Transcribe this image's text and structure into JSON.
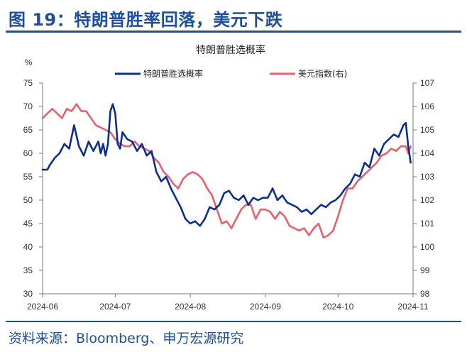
{
  "figure_title": "图 19：特朗普胜率回落，美元下跌",
  "source": "资料来源：Bloomberg、申万宏源研究",
  "chart_data": {
    "type": "line",
    "title": "特朗普胜选概率",
    "left_axis_unit": "%",
    "ylim_left": [
      30,
      75
    ],
    "ylim_right": [
      98,
      107
    ],
    "y_ticks_left": [
      "30",
      "35",
      "40",
      "45",
      "50",
      "55",
      "60",
      "65",
      "70",
      "75"
    ],
    "y_ticks_right": [
      "98",
      "99",
      "100",
      "101",
      "102",
      "103",
      "104",
      "105",
      "106",
      "107"
    ],
    "x_ticks": [
      "2024-06",
      "2024-07",
      "2024-08",
      "2024-09",
      "2024-10",
      "2024-11"
    ],
    "xlim": [
      "2024-06-01",
      "2024-11-01"
    ],
    "grid": false,
    "legend_position": "top",
    "series": [
      {
        "name": "特朗普胜选概率",
        "axis": "left",
        "color": "#0d2f8c",
        "points": [
          [
            "2024-06-01",
            56.5
          ],
          [
            "2024-06-03",
            56.5
          ],
          [
            "2024-06-04",
            57.5
          ],
          [
            "2024-06-06",
            59
          ],
          [
            "2024-06-08",
            60
          ],
          [
            "2024-06-10",
            62
          ],
          [
            "2024-06-12",
            61
          ],
          [
            "2024-06-14",
            66
          ],
          [
            "2024-06-16",
            61.5
          ],
          [
            "2024-06-18",
            59.5
          ],
          [
            "2024-06-20",
            62.5
          ],
          [
            "2024-06-22",
            60.5
          ],
          [
            "2024-06-24",
            62.5
          ],
          [
            "2024-06-25",
            60
          ],
          [
            "2024-06-26",
            62
          ],
          [
            "2024-06-27",
            59.5
          ],
          [
            "2024-06-28",
            62
          ],
          [
            "2024-06-29",
            69
          ],
          [
            "2024-06-30",
            70.5
          ],
          [
            "2024-07-01",
            68.5
          ],
          [
            "2024-07-02",
            62
          ],
          [
            "2024-07-03",
            61
          ],
          [
            "2024-07-04",
            64.5
          ],
          [
            "2024-07-06",
            63
          ],
          [
            "2024-07-08",
            62.5
          ],
          [
            "2024-07-10",
            60.5
          ],
          [
            "2024-07-12",
            62
          ],
          [
            "2024-07-14",
            59.5
          ],
          [
            "2024-07-16",
            60.5
          ],
          [
            "2024-07-18",
            56
          ],
          [
            "2024-07-20",
            54
          ],
          [
            "2024-07-22",
            55
          ],
          [
            "2024-07-24",
            52.5
          ],
          [
            "2024-07-26",
            50.5
          ],
          [
            "2024-07-28",
            48.5
          ],
          [
            "2024-07-30",
            46
          ],
          [
            "2024-08-01",
            45
          ],
          [
            "2024-08-03",
            45.5
          ],
          [
            "2024-08-05",
            44.5
          ],
          [
            "2024-08-07",
            46
          ],
          [
            "2024-08-09",
            48.5
          ],
          [
            "2024-08-11",
            48
          ],
          [
            "2024-08-13",
            49
          ],
          [
            "2024-08-15",
            51.5
          ],
          [
            "2024-08-17",
            52
          ],
          [
            "2024-08-19",
            50.5
          ],
          [
            "2024-08-21",
            50
          ],
          [
            "2024-08-23",
            51
          ],
          [
            "2024-08-25",
            49
          ],
          [
            "2024-08-27",
            50.5
          ],
          [
            "2024-08-29",
            50
          ],
          [
            "2024-08-31",
            50.5
          ],
          [
            "2024-09-02",
            50.5
          ],
          [
            "2024-09-04",
            52.5
          ],
          [
            "2024-09-06",
            50
          ],
          [
            "2024-09-08",
            51
          ],
          [
            "2024-09-10",
            49.5
          ],
          [
            "2024-09-12",
            49
          ],
          [
            "2024-09-14",
            48.5
          ],
          [
            "2024-09-16",
            47.5
          ],
          [
            "2024-09-18",
            48
          ],
          [
            "2024-09-20",
            47
          ],
          [
            "2024-09-22",
            48
          ],
          [
            "2024-09-24",
            49
          ],
          [
            "2024-09-26",
            48.5
          ],
          [
            "2024-09-28",
            49.5
          ],
          [
            "2024-09-30",
            50
          ],
          [
            "2024-10-02",
            51
          ],
          [
            "2024-10-04",
            52.5
          ],
          [
            "2024-10-06",
            53.5
          ],
          [
            "2024-10-08",
            55.5
          ],
          [
            "2024-10-10",
            55
          ],
          [
            "2024-10-12",
            58
          ],
          [
            "2024-10-14",
            57
          ],
          [
            "2024-10-16",
            61
          ],
          [
            "2024-10-18",
            59.5
          ],
          [
            "2024-10-20",
            62
          ],
          [
            "2024-10-22",
            63
          ],
          [
            "2024-10-24",
            64
          ],
          [
            "2024-10-26",
            63.5
          ],
          [
            "2024-10-28",
            66
          ],
          [
            "2024-10-29",
            66.5
          ],
          [
            "2024-10-30",
            61.5
          ],
          [
            "2024-10-31",
            58
          ]
        ]
      },
      {
        "name": "美元指数(右)",
        "axis": "right",
        "color": "#e5616b",
        "points": [
          [
            "2024-06-01",
            105.5
          ],
          [
            "2024-06-03",
            105.7
          ],
          [
            "2024-06-05",
            105.9
          ],
          [
            "2024-06-07",
            105.7
          ],
          [
            "2024-06-09",
            105.5
          ],
          [
            "2024-06-11",
            105.9
          ],
          [
            "2024-06-13",
            105.8
          ],
          [
            "2024-06-15",
            106.1
          ],
          [
            "2024-06-17",
            105.8
          ],
          [
            "2024-06-19",
            105.8
          ],
          [
            "2024-06-21",
            105.5
          ],
          [
            "2024-06-23",
            105.2
          ],
          [
            "2024-06-25",
            105.1
          ],
          [
            "2024-06-27",
            105.0
          ],
          [
            "2024-06-29",
            104.9
          ],
          [
            "2024-07-01",
            104.6
          ],
          [
            "2024-07-03",
            104.4
          ],
          [
            "2024-07-05",
            104.3
          ],
          [
            "2024-07-07",
            104.3
          ],
          [
            "2024-07-09",
            104.5
          ],
          [
            "2024-07-11",
            104.3
          ],
          [
            "2024-07-13",
            104.2
          ],
          [
            "2024-07-15",
            104.1
          ],
          [
            "2024-07-17",
            103.8
          ],
          [
            "2024-07-19",
            103.6
          ],
          [
            "2024-07-21",
            103.2
          ],
          [
            "2024-07-23",
            103.0
          ],
          [
            "2024-07-25",
            102.7
          ],
          [
            "2024-07-27",
            102.5
          ],
          [
            "2024-07-29",
            102.9
          ],
          [
            "2024-07-31",
            103.1
          ],
          [
            "2024-08-02",
            103.2
          ],
          [
            "2024-08-04",
            103.1
          ],
          [
            "2024-08-06",
            102.9
          ],
          [
            "2024-08-08",
            102.5
          ],
          [
            "2024-08-10",
            102.2
          ],
          [
            "2024-08-12",
            101.6
          ],
          [
            "2024-08-14",
            101.0
          ],
          [
            "2024-08-16",
            101.1
          ],
          [
            "2024-08-18",
            100.8
          ],
          [
            "2024-08-20",
            101.2
          ],
          [
            "2024-08-22",
            101.6
          ],
          [
            "2024-08-24",
            101.8
          ],
          [
            "2024-08-26",
            101.8
          ],
          [
            "2024-08-28",
            101.2
          ],
          [
            "2024-08-30",
            101.6
          ],
          [
            "2024-09-01",
            101.6
          ],
          [
            "2024-09-03",
            101.5
          ],
          [
            "2024-09-05",
            101.2
          ],
          [
            "2024-09-07",
            101.5
          ],
          [
            "2024-09-09",
            101.3
          ],
          [
            "2024-09-11",
            100.9
          ],
          [
            "2024-09-13",
            100.8
          ],
          [
            "2024-09-15",
            100.7
          ],
          [
            "2024-09-17",
            100.8
          ],
          [
            "2024-09-19",
            100.5
          ],
          [
            "2024-09-21",
            100.8
          ],
          [
            "2024-09-23",
            101.0
          ],
          [
            "2024-09-25",
            100.4
          ],
          [
            "2024-09-27",
            100.5
          ],
          [
            "2024-09-29",
            100.7
          ],
          [
            "2024-10-01",
            101.3
          ],
          [
            "2024-10-03",
            102.0
          ],
          [
            "2024-10-05",
            102.5
          ],
          [
            "2024-10-07",
            102.5
          ],
          [
            "2024-10-09",
            102.8
          ],
          [
            "2024-10-11",
            103.0
          ],
          [
            "2024-10-13",
            103.2
          ],
          [
            "2024-10-15",
            103.4
          ],
          [
            "2024-10-17",
            103.6
          ],
          [
            "2024-10-19",
            103.9
          ],
          [
            "2024-10-21",
            104.0
          ],
          [
            "2024-10-23",
            104.2
          ],
          [
            "2024-10-25",
            104.1
          ],
          [
            "2024-10-27",
            104.3
          ],
          [
            "2024-10-29",
            104.3
          ],
          [
            "2024-10-30",
            104.0
          ],
          [
            "2024-10-31",
            104.3
          ]
        ]
      }
    ]
  }
}
